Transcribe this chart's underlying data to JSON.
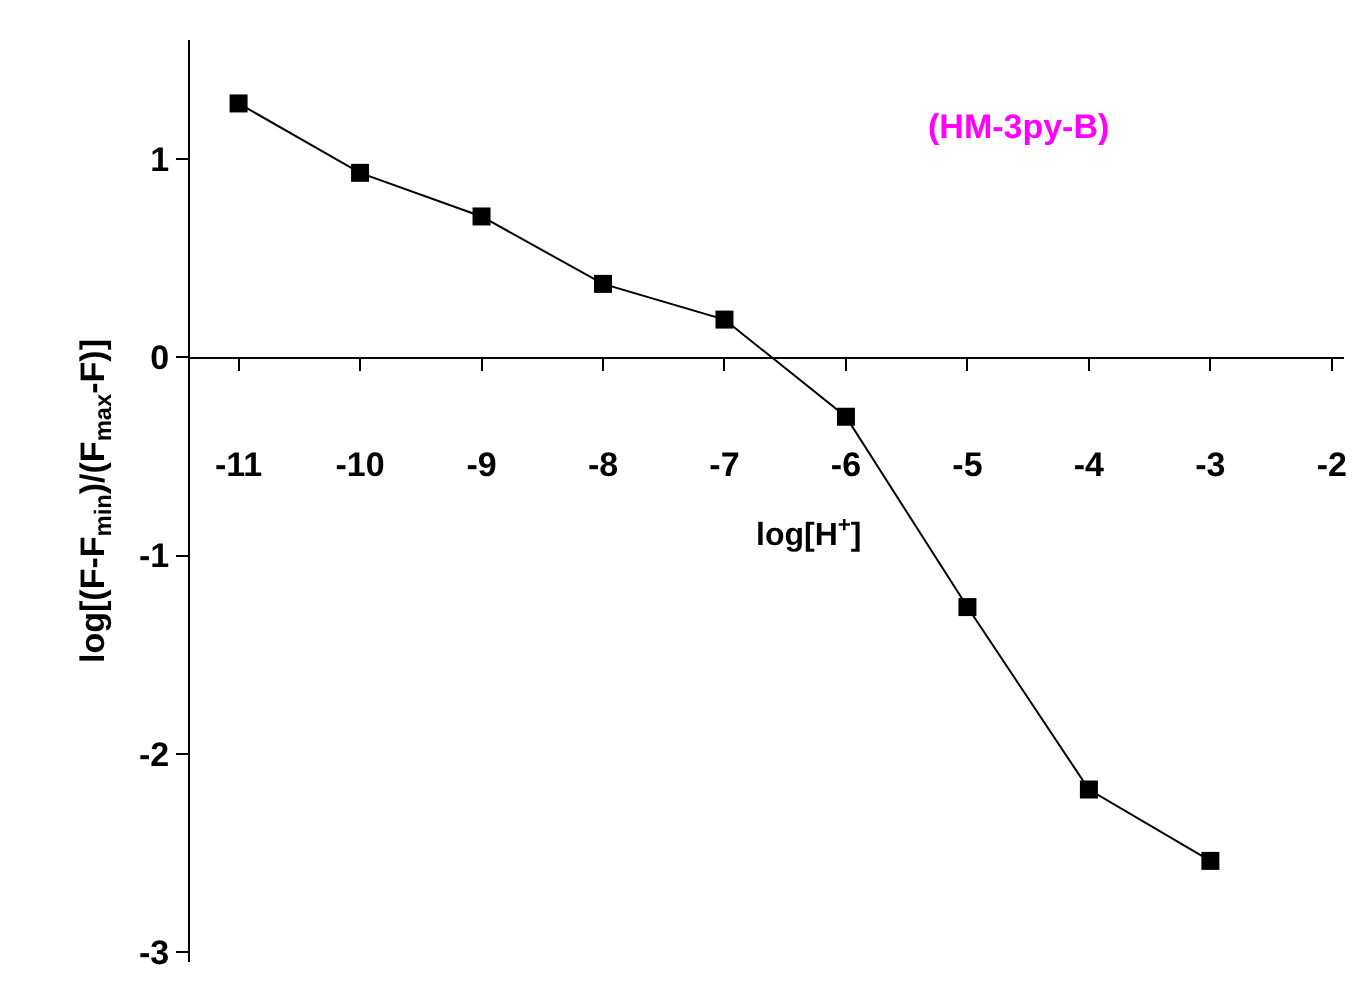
{
  "chart_data": {
    "type": "line",
    "xlabel": "log[H$^{+}$]",
    "ylabel": "log[(F-F$_{min}$)/(F$_{max}$-F)]",
    "annotations": [
      "(HM-3py-B)"
    ],
    "x": [
      -11,
      -10,
      -9,
      -8,
      -7,
      -6,
      -5,
      -4,
      -3
    ],
    "series": [
      {
        "color": "#000000",
        "values": [
          1.28,
          0.93,
          0.71,
          0.37,
          0.19,
          -0.3,
          -1.26,
          -2.18,
          -2.54
        ]
      }
    ],
    "xlim": [
      -11.4,
      -1.9
    ],
    "ylim": [
      -3.05,
      1.6
    ],
    "xticks": [
      -11,
      -10,
      -9,
      -8,
      -7,
      -6,
      -5,
      -4,
      -3,
      -2
    ],
    "yticks": [
      -3,
      -2,
      -1,
      0,
      1
    ],
    "marker": "square",
    "line_style": "solid",
    "legend": false
  }
}
